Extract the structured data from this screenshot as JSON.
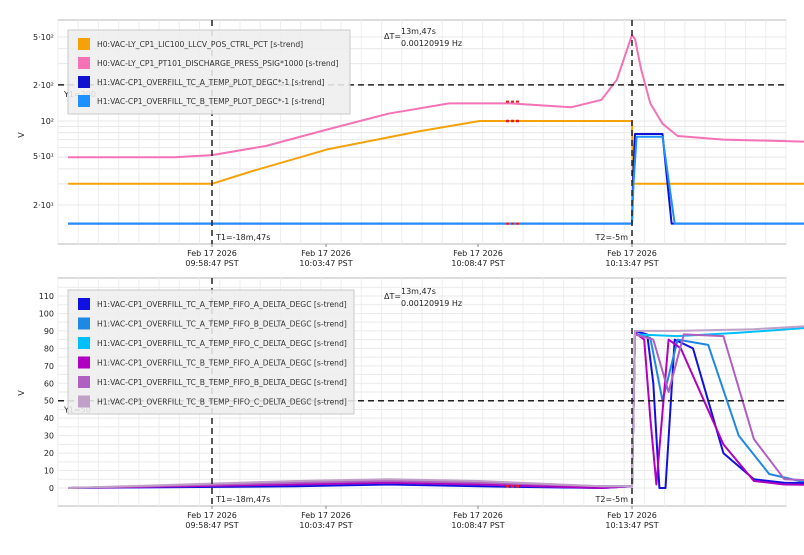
{
  "charts": [
    {
      "id": "top",
      "ylabel": "V",
      "y_ticks": [
        "5·10²",
        "2·10²",
        "10²",
        "5·10¹",
        "2·10¹"
      ],
      "x_ticks": [
        {
          "date": "Feb 17 2026",
          "time": "09:58:47 PST"
        },
        {
          "date": "Feb 17 2026",
          "time": "10:03:47 PST"
        },
        {
          "date": "Feb 17 2026",
          "time": "10:08:47 PST"
        },
        {
          "date": "Feb 17 2026",
          "time": "10:13:47 PST"
        }
      ],
      "legend": [
        {
          "label": "H0:VAC-LY_CP1_LIC100_LLCV_POS_CTRL_PCT [s-trend]",
          "color": "#f5a20a"
        },
        {
          "label": "H0:VAC-LY_CP1_PT101_DISCHARGE_PRESS_PSIG*1000 [s-trend]",
          "color": "#f472b6"
        },
        {
          "label": "H1:VAC-CP1_OVERFILL_TC_A_TEMP_PLOT_DEGC*-1 [s-trend]",
          "color": "#1010d0"
        },
        {
          "label": "H1:VAC-CP1_OVERFILL_TC_B_TEMP_PLOT_DEGC*-1 [s-trend]",
          "color": "#1e90ff"
        }
      ],
      "cursor_y_label": "Y1=200",
      "cursor_t1_label": "T1=-18m,47s",
      "cursor_t2_label": "T2=-5m",
      "delta_label": "ΔT=",
      "delta_value": "13m,47s",
      "delta_freq": "0.00120919 Hz"
    },
    {
      "id": "bottom",
      "ylabel": "V",
      "y_ticks": [
        "110",
        "100",
        "90",
        "80",
        "70",
        "60",
        "50",
        "40",
        "30",
        "20",
        "10",
        "0"
      ],
      "x_ticks": [
        {
          "date": "Feb 17 2026",
          "time": "09:58:47 PST"
        },
        {
          "date": "Feb 17 2026",
          "time": "10:03:47 PST"
        },
        {
          "date": "Feb 17 2026",
          "time": "10:08:47 PST"
        },
        {
          "date": "Feb 17 2026",
          "time": "10:13:47 PST"
        }
      ],
      "legend": [
        {
          "label": "H1:VAC-CP1_OVERFILL_TC_A_TEMP_FIFO_A_DELTA_DEGC [s-trend]",
          "color": "#1010e0"
        },
        {
          "label": "H1:VAC-CP1_OVERFILL_TC_A_TEMP_FIFO_B_DELTA_DEGC [s-trend]",
          "color": "#1e88e5"
        },
        {
          "label": "H1:VAC-CP1_OVERFILL_TC_A_TEMP_FIFO_C_DELTA_DEGC [s-trend]",
          "color": "#00bfff"
        },
        {
          "label": "H1:VAC-CP1_OVERFILL_TC_B_TEMP_FIFO_A_DELTA_DEGC [s-trend]",
          "color": "#b000c0"
        },
        {
          "label": "H1:VAC-CP1_OVERFILL_TC_B_TEMP_FIFO_B_DELTA_DEGC [s-trend]",
          "color": "#b060c0"
        },
        {
          "label": "H1:VAC-CP1_OVERFILL_TC_B_TEMP_FIFO_C_DELTA_DEGC [s-trend]",
          "color": "#c0a0c8"
        }
      ],
      "cursor_y_label": "Y1=50",
      "cursor_t1_label": "T1=-18m,47s",
      "cursor_t2_label": "T2=-5m",
      "delta_label": "ΔT=",
      "delta_value": "13m,47s",
      "delta_freq": "0.00120919 Hz"
    }
  ],
  "chart_data": [
    {
      "type": "line",
      "y_scale": "log",
      "ylabel": "V",
      "ylim": [
        12,
        650
      ],
      "x_unit": "minutes relative to 10:13:47 PST",
      "xlim": [
        -23.5,
        4.7
      ],
      "cursors": {
        "y1": 200,
        "t1": -18.78,
        "t2": -5
      },
      "series": [
        {
          "name": "H0:VAC-LY_CP1_LIC100_LLCV_POS_CTRL_PCT [s-trend]",
          "color": "#f5a20a",
          "x": [
            -23.5,
            -18.78,
            -17.5,
            -15.0,
            -12.0,
            -10.0,
            -8.0,
            -5.0,
            -4.97,
            4.7
          ],
          "y": [
            30,
            30,
            38,
            58,
            82,
            100,
            100,
            100,
            30,
            30
          ]
        },
        {
          "name": "H0:VAC-LY_CP1_PT101_DISCHARGE_PRESS_PSIG*1000 [s-trend]",
          "color": "#f472b6",
          "x": [
            -23.5,
            -20.0,
            -18.78,
            -17.0,
            -15.0,
            -13.0,
            -11.0,
            -9.0,
            -7.0,
            -6.0,
            -5.5,
            -5.0,
            -4.9,
            -4.7,
            -4.4,
            -4.0,
            -3.5,
            -2.0,
            0.0,
            2.0,
            4.7
          ],
          "y": [
            50,
            50,
            52,
            62,
            85,
            115,
            140,
            140,
            130,
            150,
            220,
            520,
            480,
            270,
            140,
            95,
            75,
            70,
            68,
            66,
            68
          ]
        },
        {
          "name": "H1:VAC-CP1_OVERFILL_TC_A_TEMP_PLOT_DEGC*-1 [s-trend]",
          "color": "#1010d0",
          "x": [
            -23.5,
            -5.0,
            -4.97,
            -4.9,
            -4.0,
            -3.7,
            -3.6,
            4.7
          ],
          "y": [
            14,
            14,
            30,
            78,
            78,
            14,
            14,
            14
          ]
        },
        {
          "name": "H1:VAC-CP1_OVERFILL_TC_B_TEMP_PLOT_DEGC*-1 [s-trend]",
          "color": "#1e90ff",
          "x": [
            -23.5,
            -5.0,
            -4.95,
            -4.85,
            -4.0,
            -3.6,
            -3.5,
            4.7
          ],
          "y": [
            14,
            14,
            30,
            74,
            74,
            14,
            14,
            14
          ]
        }
      ]
    },
    {
      "type": "line",
      "ylabel": "V",
      "ylim": [
        -12,
        120
      ],
      "yticks": [
        0,
        10,
        20,
        30,
        40,
        50,
        60,
        70,
        80,
        90,
        100,
        110
      ],
      "x_unit": "minutes relative to 10:13:47 PST",
      "xlim": [
        -23.5,
        4.7
      ],
      "cursors": {
        "y1": 50,
        "t1": -18.78,
        "t2": -5
      },
      "series": [
        {
          "name": "H1:VAC-CP1_OVERFILL_TC_A_TEMP_FIFO_A_DELTA_DEGC [s-trend]",
          "color": "#1010e0",
          "x": [
            -23.5,
            -16.0,
            -13.0,
            -10.0,
            -6.0,
            -5.0,
            -4.9,
            -4.5,
            -4.3,
            -4.1,
            -3.9,
            -3.6,
            -3.0,
            -2.0,
            -1.0,
            0.0,
            4.7
          ],
          "y": [
            0,
            1,
            2,
            1,
            0,
            1,
            90,
            88,
            60,
            0,
            0,
            85,
            80,
            20,
            5,
            3,
            2
          ]
        },
        {
          "name": "H1:VAC-CP1_OVERFILL_TC_A_TEMP_FIFO_B_DELTA_DEGC [s-trend]",
          "color": "#1e88e5",
          "x": [
            -23.5,
            -16.0,
            -13.0,
            -10.0,
            -6.0,
            -5.0,
            -4.9,
            -4.4,
            -4.0,
            -3.5,
            -2.5,
            -1.5,
            -0.5,
            0.5,
            4.7
          ],
          "y": [
            0,
            2,
            3,
            2,
            0,
            1,
            88,
            86,
            50,
            85,
            82,
            30,
            8,
            4,
            2
          ]
        },
        {
          "name": "H1:VAC-CP1_OVERFILL_TC_A_TEMP_FIFO_C_DELTA_DEGC [s-trend]",
          "color": "#00bfff",
          "x": [
            -23.5,
            -16.0,
            -13.0,
            -10.0,
            -6.0,
            -5.0,
            -4.9,
            -3.5,
            -1.5,
            1.0,
            1.7,
            2.0,
            2.5,
            3.5,
            4.7
          ],
          "y": [
            0,
            3,
            4,
            3,
            1,
            1,
            88,
            87,
            89,
            92,
            90,
            30,
            8,
            4,
            3
          ]
        },
        {
          "name": "H1:VAC-CP1_OVERFILL_TC_B_TEMP_FIFO_A_DELTA_DEGC [s-trend]",
          "color": "#b000c0",
          "x": [
            -23.5,
            -16.0,
            -13.0,
            -10.0,
            -6.0,
            -5.0,
            -4.9,
            -4.6,
            -4.4,
            -4.2,
            -3.8,
            -3.4,
            -2.0,
            -1.0,
            0.0,
            4.7
          ],
          "y": [
            0,
            2,
            3,
            2,
            0,
            1,
            89,
            85,
            40,
            2,
            85,
            80,
            25,
            4,
            2,
            1
          ]
        },
        {
          "name": "H1:VAC-CP1_OVERFILL_TC_B_TEMP_FIFO_B_DELTA_DEGC [s-trend]",
          "color": "#b060c0",
          "x": [
            -23.5,
            -16.0,
            -13.0,
            -10.0,
            -6.0,
            -5.0,
            -4.9,
            -4.3,
            -3.8,
            -3.3,
            -2.0,
            -1.0,
            0.0,
            4.7
          ],
          "y": [
            0,
            3,
            4,
            3,
            1,
            1,
            88,
            85,
            55,
            88,
            87,
            28,
            5,
            2
          ]
        },
        {
          "name": "H1:VAC-CP1_OVERFILL_TC_B_TEMP_FIFO_C_DELTA_DEGC [s-trend]",
          "color": "#c0a0c8",
          "x": [
            -23.5,
            -16.0,
            -13.0,
            -10.0,
            -6.0,
            -5.0,
            -4.9,
            -3.5,
            -1.0,
            1.0,
            1.7,
            2.1,
            2.6,
            3.5,
            4.7
          ],
          "y": [
            0,
            4,
            5,
            4,
            1,
            1,
            90,
            90,
            91,
            93,
            93,
            35,
            10,
            4,
            3
          ]
        }
      ]
    }
  ]
}
